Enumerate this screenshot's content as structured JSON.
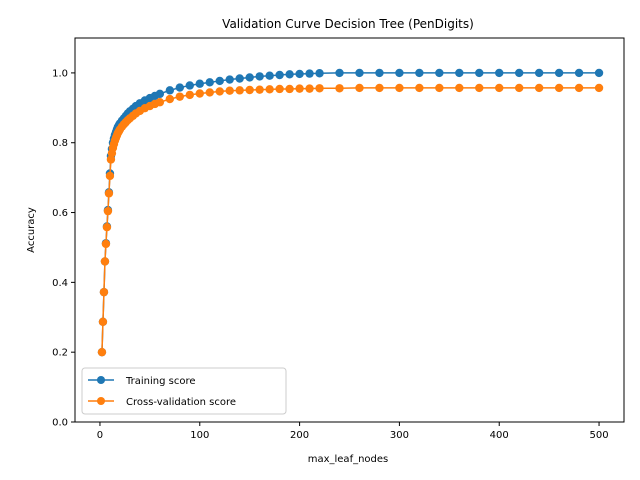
{
  "chart_data": {
    "type": "line",
    "title": "Validation Curve Decision Tree (PenDigits)",
    "xlabel": "max_leaf_nodes",
    "ylabel": "Accuracy",
    "xlim": [
      -25,
      525
    ],
    "ylim": [
      0.0,
      1.1
    ],
    "xticks": [
      0,
      100,
      200,
      300,
      400,
      500
    ],
    "yticks": [
      0.0,
      0.2,
      0.4,
      0.6,
      0.8,
      1.0
    ],
    "grid": false,
    "legend_position": "lower-left",
    "series": [
      {
        "name": "Training score",
        "color": "#1f77b4",
        "marker": "circle",
        "x": [
          2,
          3,
          4,
          5,
          6,
          7,
          8,
          9,
          10,
          11,
          12,
          13,
          14,
          15,
          16,
          17,
          18,
          19,
          20,
          22,
          24,
          26,
          28,
          30,
          33,
          36,
          40,
          45,
          50,
          55,
          60,
          70,
          80,
          90,
          100,
          110,
          120,
          130,
          140,
          150,
          160,
          170,
          180,
          190,
          200,
          210,
          220,
          240,
          260,
          280,
          300,
          320,
          340,
          360,
          380,
          400,
          420,
          440,
          460,
          480,
          500
        ],
        "y": [
          0.2,
          0.287,
          0.372,
          0.46,
          0.512,
          0.56,
          0.607,
          0.658,
          0.712,
          0.762,
          0.782,
          0.8,
          0.812,
          0.822,
          0.83,
          0.838,
          0.845,
          0.85,
          0.855,
          0.863,
          0.87,
          0.877,
          0.884,
          0.89,
          0.897,
          0.905,
          0.913,
          0.921,
          0.928,
          0.934,
          0.94,
          0.95,
          0.958,
          0.964,
          0.969,
          0.973,
          0.977,
          0.981,
          0.984,
          0.987,
          0.99,
          0.992,
          0.994,
          0.996,
          0.997,
          0.998,
          0.999,
          1.0,
          1.0,
          1.0,
          1.0,
          1.0,
          1.0,
          1.0,
          1.0,
          1.0,
          1.0,
          1.0,
          1.0,
          1.0,
          1.0
        ]
      },
      {
        "name": "Cross-validation score",
        "color": "#ff7f0e",
        "marker": "circle",
        "x": [
          2,
          3,
          4,
          5,
          6,
          7,
          8,
          9,
          10,
          11,
          12,
          13,
          14,
          15,
          16,
          17,
          18,
          19,
          20,
          22,
          24,
          26,
          28,
          30,
          33,
          36,
          40,
          45,
          50,
          55,
          60,
          70,
          80,
          90,
          100,
          110,
          120,
          130,
          140,
          150,
          160,
          170,
          180,
          190,
          200,
          210,
          220,
          240,
          260,
          280,
          300,
          320,
          340,
          360,
          380,
          400,
          420,
          440,
          460,
          480,
          500
        ],
        "y": [
          0.2,
          0.287,
          0.372,
          0.46,
          0.51,
          0.558,
          0.604,
          0.655,
          0.705,
          0.752,
          0.77,
          0.785,
          0.796,
          0.806,
          0.814,
          0.821,
          0.828,
          0.833,
          0.838,
          0.846,
          0.853,
          0.859,
          0.865,
          0.87,
          0.877,
          0.884,
          0.891,
          0.899,
          0.905,
          0.911,
          0.916,
          0.925,
          0.932,
          0.937,
          0.941,
          0.944,
          0.947,
          0.949,
          0.95,
          0.951,
          0.952,
          0.953,
          0.954,
          0.954,
          0.955,
          0.955,
          0.956,
          0.956,
          0.957,
          0.957,
          0.957,
          0.957,
          0.957,
          0.957,
          0.957,
          0.957,
          0.957,
          0.957,
          0.957,
          0.957,
          0.957
        ]
      }
    ]
  }
}
